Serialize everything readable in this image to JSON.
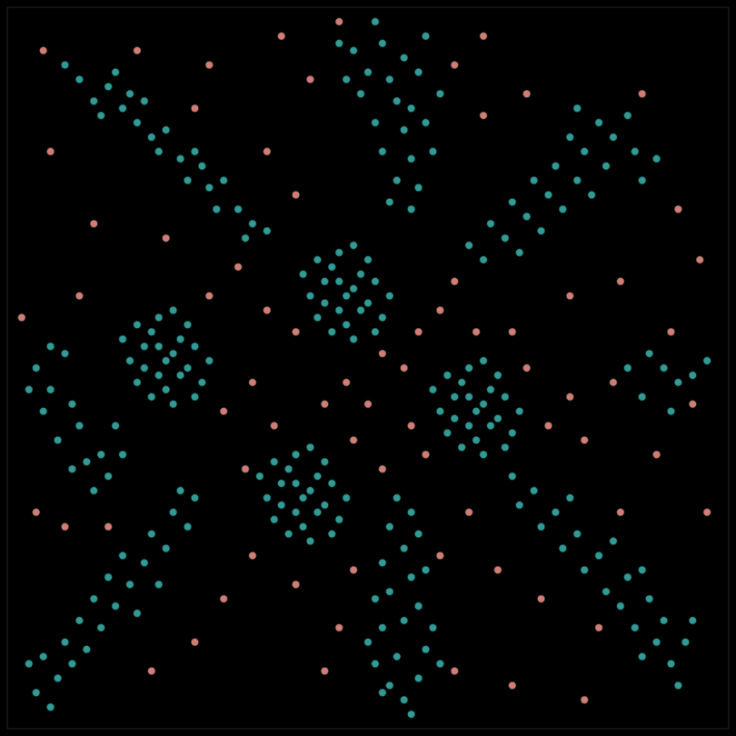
{
  "chart_data": {
    "type": "scatter",
    "xlim": [
      0,
      100
    ],
    "ylim": [
      0,
      100
    ],
    "tick_labels": false,
    "grid": false,
    "series": [
      {
        "color": "#35a7a2",
        "marker": "circle",
        "x": [
          44,
          46,
          48,
          50,
          45,
          47,
          49,
          42,
          51,
          46,
          43,
          48,
          52,
          44,
          50,
          47,
          41,
          53,
          45,
          49,
          46,
          51,
          43,
          48,
          62,
          64,
          66,
          68,
          63,
          65,
          67,
          60,
          69,
          64,
          61,
          66,
          70,
          62,
          68,
          65,
          59,
          71,
          63,
          67,
          64,
          69,
          61,
          66,
          38,
          40,
          42,
          44,
          39,
          41,
          43,
          36,
          45,
          40,
          37,
          42,
          46,
          38,
          44,
          41,
          35,
          47,
          39,
          43,
          40,
          45,
          37,
          42,
          19,
          21,
          23,
          25,
          20,
          22,
          24,
          17,
          26,
          21,
          18,
          23,
          27,
          19,
          25,
          22,
          16,
          28,
          20,
          24,
          21,
          26,
          18,
          23,
          10,
          12,
          14,
          13,
          16,
          18,
          17,
          20,
          22,
          21,
          24,
          26,
          25,
          28,
          30,
          29,
          32,
          34,
          33,
          36,
          15,
          8,
          19,
          27,
          48,
          52,
          55,
          50,
          53,
          57,
          49,
          54,
          56,
          51,
          55,
          58,
          52,
          56,
          54,
          57,
          53,
          56,
          59,
          47,
          60,
          46,
          51,
          58,
          84,
          87,
          82,
          80,
          83,
          78,
          79,
          76,
          81,
          75,
          73,
          77,
          72,
          70,
          74,
          69,
          67,
          71,
          66,
          88,
          86,
          90,
          79,
          64,
          92,
          90,
          94,
          88,
          91,
          87,
          89,
          85,
          86,
          83,
          82,
          80,
          79,
          77,
          76,
          74,
          73,
          71,
          70,
          95,
          93,
          84,
          78,
          88,
          52,
          55,
          57,
          51,
          54,
          58,
          52,
          55,
          57,
          53,
          56,
          52,
          55,
          57,
          53,
          56,
          50,
          59,
          51,
          54,
          58,
          53,
          56,
          60,
          4,
          7,
          5,
          9,
          8,
          11,
          10,
          13,
          12,
          15,
          14,
          17,
          16,
          19,
          20,
          22,
          23,
          25,
          26,
          6,
          3,
          18,
          21,
          24,
          4,
          6,
          8,
          5,
          9,
          7,
          10,
          11,
          13,
          12,
          14,
          3,
          6,
          15,
          9,
          16,
          88,
          91,
          93,
          89,
          95,
          92,
          86,
          97
        ],
        "values": [
          62,
          58,
          61,
          59,
          64,
          56,
          63,
          60,
          62,
          66,
          57,
          54,
          57,
          59,
          65,
          60,
          63,
          60,
          55,
          58,
          62,
          55,
          65,
          67,
          46,
          42,
          45,
          43,
          48,
          40,
          47,
          44,
          46,
          50,
          41,
          38,
          41,
          43,
          49,
          44,
          47,
          44,
          39,
          42,
          46,
          39,
          49,
          51,
          34,
          30,
          33,
          31,
          36,
          28,
          35,
          32,
          34,
          38,
          29,
          26,
          29,
          31,
          37,
          32,
          35,
          32,
          27,
          30,
          34,
          27,
          37,
          39,
          53,
          49,
          52,
          50,
          55,
          47,
          54,
          51,
          53,
          57,
          48,
          45,
          48,
          50,
          56,
          51,
          54,
          51,
          46,
          49,
          53,
          46,
          56,
          58,
          90,
          87,
          89,
          85,
          86,
          84,
          88,
          82,
          83,
          80,
          79,
          80,
          76,
          75,
          76,
          72,
          72,
          70,
          68,
          69,
          91,
          92,
          87,
          78,
          94,
          95,
          93,
          91,
          90,
          91,
          88,
          87,
          86,
          84,
          83,
          84,
          80,
          79,
          76,
          75,
          73,
          72,
          80,
          90,
          88,
          95,
          98,
          96,
          82,
          80,
          84,
          80,
          78,
          82,
          76,
          78,
          74,
          74,
          76,
          72,
          71,
          73,
          69,
          68,
          70,
          66,
          65,
          76,
          85,
          79,
          86,
          67,
          9,
          12,
          12,
          10,
          15,
          14,
          18,
          17,
          21,
          19,
          24,
          22,
          27,
          25,
          30,
          28,
          33,
          31,
          35,
          15,
          6,
          26,
          32,
          22,
          5,
          4,
          7,
          9,
          10,
          11,
          14,
          15,
          17,
          19,
          21,
          23,
          25,
          27,
          28,
          30,
          12,
          14,
          18,
          32,
          22,
          6,
          2,
          9,
          5,
          7,
          10,
          9,
          12,
          11,
          15,
          14,
          18,
          17,
          21,
          20,
          24,
          23,
          27,
          25,
          30,
          28,
          32,
          3,
          9,
          16,
          20,
          33,
          50,
          47,
          52,
          44,
          45,
          40,
          42,
          37,
          38,
          33,
          35,
          47,
          53,
          42,
          36,
          38,
          46,
          50,
          48,
          52,
          49,
          44,
          50,
          51
        ]
      },
      {
        "color": "#e5877d",
        "marker": "circle",
        "x": [
          52,
          55,
          47,
          44,
          50,
          57,
          40,
          36,
          34,
          30,
          28,
          32,
          60,
          62,
          65,
          70,
          72,
          75,
          78,
          80,
          84,
          92,
          95,
          90,
          85,
          82,
          74,
          68,
          64,
          60,
          48,
          46,
          44,
          40,
          34,
          30,
          26,
          20,
          14,
          8,
          4,
          2,
          10,
          12,
          6,
          5,
          18,
          26,
          36,
          40,
          42,
          46,
          62,
          66,
          72,
          88,
          93,
          96,
          85,
          78,
          58,
          52,
          48,
          56,
          37,
          33,
          62,
          70,
          80,
          97,
          28,
          38,
          22,
          66
        ],
        "values": [
          52,
          50,
          48,
          45,
          45,
          55,
          55,
          58,
          48,
          44,
          60,
          64,
          58,
          62,
          55,
          55,
          50,
          42,
          46,
          40,
          48,
          55,
          45,
          38,
          30,
          14,
          18,
          22,
          30,
          24,
          22,
          14,
          8,
          20,
          24,
          18,
          12,
          8,
          28,
          28,
          30,
          57,
          60,
          70,
          80,
          94,
          94,
          86,
          80,
          74,
          90,
          98,
          92,
          85,
          88,
          88,
          72,
          65,
          62,
          60,
          38,
          36,
          40,
          42,
          42,
          36,
          8,
          6,
          4,
          30,
          92,
          96,
          68,
          96
        ]
      }
    ]
  }
}
